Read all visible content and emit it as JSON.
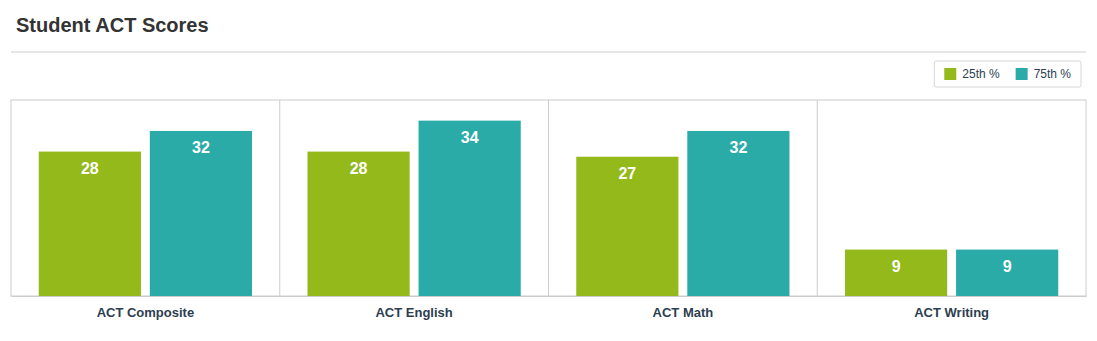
{
  "chart_data": {
    "type": "bar",
    "title": "Student ACT Scores",
    "categories": [
      "ACT Composite",
      "ACT English",
      "ACT Math",
      "ACT Writing"
    ],
    "series": [
      {
        "name": "25th %",
        "color": "#93b91a",
        "values": [
          28,
          28,
          27,
          9
        ]
      },
      {
        "name": "75th %",
        "color": "#2aaba8",
        "values": [
          32,
          34,
          32,
          9
        ]
      }
    ],
    "ylim": [
      0,
      38
    ],
    "tick_labels": "x",
    "data_labels": true,
    "legend": "upper right",
    "grid": false
  }
}
